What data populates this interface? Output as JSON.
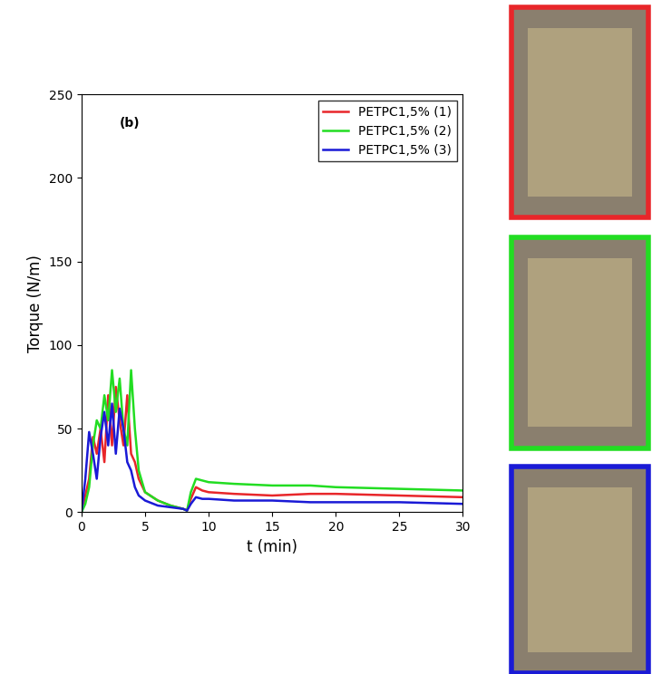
{
  "chart_data": {
    "type": "line",
    "annotation": "(b)",
    "x_label": "t (min)",
    "y_label": "Torque (N/m)",
    "x": [
      0,
      0.3,
      0.6,
      0.9,
      1.2,
      1.5,
      1.8,
      2.1,
      2.4,
      2.7,
      3.0,
      3.3,
      3.6,
      3.9,
      4.2,
      4.5,
      5,
      6,
      7,
      8,
      8.3,
      8.6,
      9,
      9.5,
      10,
      12,
      15,
      18,
      20,
      25,
      30
    ],
    "series": [
      {
        "name": "PETPC1,5% (1)",
        "color": "#e8262a",
        "values": [
          0,
          10,
          20,
          45,
          35,
          50,
          30,
          70,
          40,
          75,
          55,
          40,
          70,
          35,
          30,
          20,
          12,
          7,
          4,
          2,
          1,
          8,
          15,
          13,
          12,
          11,
          10,
          11,
          11,
          10,
          9
        ]
      },
      {
        "name": "PETPC1,5% (2)",
        "color": "#22dd22",
        "values": [
          0,
          5,
          15,
          40,
          55,
          50,
          70,
          55,
          85,
          60,
          80,
          50,
          40,
          85,
          50,
          25,
          12,
          7,
          4,
          2,
          1,
          12,
          20,
          19,
          18,
          17,
          16,
          16,
          15,
          14,
          13
        ]
      },
      {
        "name": "PETPC1,5% (3)",
        "color": "#1a1ad6",
        "values": [
          0,
          20,
          48,
          35,
          20,
          45,
          60,
          40,
          65,
          35,
          62,
          50,
          30,
          25,
          15,
          10,
          7,
          4,
          3,
          2,
          1,
          5,
          9,
          8,
          8,
          7,
          7,
          6,
          6,
          6,
          5
        ]
      }
    ],
    "xlim": [
      0,
      30
    ],
    "xticks": [
      0,
      5,
      10,
      15,
      20,
      25,
      30
    ],
    "ylim": [
      0,
      250
    ],
    "yticks": [
      0,
      50,
      100,
      150,
      200,
      250
    ],
    "grid": false,
    "legend": "upper right"
  }
}
